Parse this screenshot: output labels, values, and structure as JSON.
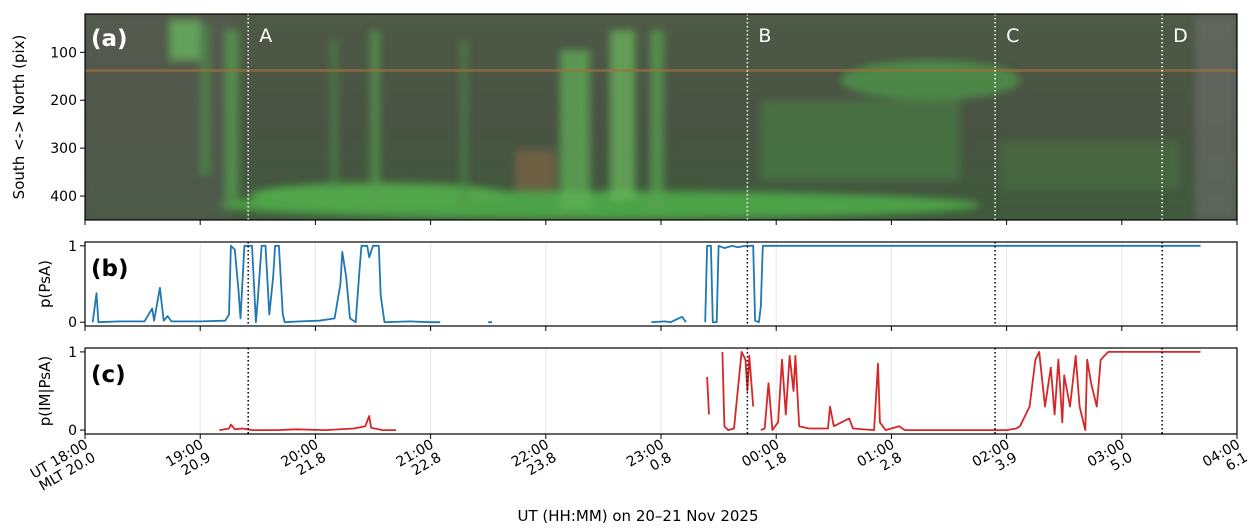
{
  "chart_data": [
    {
      "type": "image",
      "panel_label": "(a)",
      "ylabel": "South <-> North (pix)",
      "ylim": [
        450,
        20
      ],
      "yticks": [
        100,
        200,
        300,
        400
      ],
      "markers": [
        {
          "label": "A",
          "x": "19:25"
        },
        {
          "label": "B",
          "x": "23:45"
        },
        {
          "label": "C",
          "x": "01:54"
        },
        {
          "label": "D",
          "x": "03:21"
        }
      ]
    },
    {
      "type": "line",
      "panel_label": "(b)",
      "ylabel": "p(PsA)",
      "ylim": [
        -0.05,
        1.05
      ],
      "yticks": [
        0,
        1
      ],
      "color": "#1f77b4",
      "x": [
        "18:04",
        "18:06",
        "18:07",
        "18:18",
        "18:31",
        "18:35",
        "18:36",
        "18:39",
        "18:41",
        "18:43",
        "18:45",
        "19:00",
        "19:13",
        "19:15",
        "19:16",
        "19:18",
        "19:20",
        "19:21",
        "19:23",
        "19:27",
        "19:29",
        "19:30",
        "19:32",
        "19:34",
        "19:36",
        "19:38",
        "19:39",
        "19:41",
        "19:43",
        "19:44",
        "19:52",
        "20:02",
        "20:10",
        "20:13",
        "20:14",
        "20:16",
        "20:18",
        "20:21",
        "20:23",
        "20:24",
        "20:27",
        "20:28",
        "20:30",
        "20:33",
        "20:34",
        "20:36",
        "20:49",
        "21:00",
        "21:05",
        "21:15",
        "21:30",
        "21:32",
        "22:00",
        "22:55",
        "23:02",
        "23:05",
        "23:11",
        "23:13",
        "23:18",
        "23:23",
        "23:24",
        "23:26",
        "23:27",
        "23:29",
        "23:30",
        "23:33",
        "23:37",
        "23:40",
        "23:44",
        "23:48",
        "23:49",
        "23:51",
        "23:52",
        "23:53",
        "00:30",
        "01:30",
        "02:30",
        "03:41"
      ],
      "values": [
        0.0,
        0.38,
        0.0,
        0.01,
        0.01,
        0.18,
        0.02,
        0.45,
        0.02,
        0.08,
        0.01,
        0.01,
        0.02,
        0.1,
        1.0,
        0.95,
        0.4,
        0.05,
        1.0,
        1.0,
        0.0,
        0.3,
        1.0,
        1.0,
        0.1,
        0.6,
        1.0,
        1.0,
        0.1,
        0.0,
        0.01,
        0.02,
        0.05,
        0.5,
        0.92,
        0.6,
        0.05,
        0.0,
        0.7,
        1.0,
        1.0,
        0.85,
        1.0,
        1.0,
        0.35,
        0.0,
        0.01,
        0.0,
        0.0,
        null,
        0.0,
        0.0,
        null,
        0.0,
        0.01,
        0.0,
        0.07,
        0.0,
        null,
        0.0,
        1.0,
        1.0,
        0.0,
        0.0,
        1.0,
        0.97,
        1.0,
        0.98,
        1.0,
        1.0,
        0.02,
        0.0,
        0.2,
        1.0,
        1.0,
        1.0,
        1.0,
        1.0
      ]
    },
    {
      "type": "line",
      "panel_label": "(c)",
      "ylabel": "p(IM|PsA)",
      "ylim": [
        -0.05,
        1.05
      ],
      "yticks": [
        0,
        1
      ],
      "color": "#d62728",
      "x": [
        "19:10",
        "19:15",
        "19:16",
        "19:18",
        "19:22",
        "19:27",
        "19:40",
        "19:50",
        "20:05",
        "20:20",
        "20:26",
        "20:28",
        "20:29",
        "20:35",
        "20:42",
        "22:00",
        "23:24",
        "23:25",
        "23:28",
        "23:32",
        "23:33",
        "23:35",
        "23:38",
        "23:42",
        "23:44",
        "23:45",
        "23:46",
        "23:48",
        "23:50",
        "23:52",
        "23:54",
        "23:56",
        "23:58",
        "00:01",
        "00:03",
        "00:05",
        "00:07",
        "00:09",
        "00:10",
        "00:12",
        "00:17",
        "00:27",
        "00:28",
        "00:30",
        "00:38",
        "00:40",
        "00:51",
        "00:53",
        "00:54",
        "00:57",
        "01:04",
        "01:07",
        "01:30",
        "02:00",
        "02:05",
        "02:07",
        "02:12",
        "02:15",
        "02:17",
        "02:20",
        "02:23",
        "02:25",
        "02:27",
        "02:29",
        "02:30",
        "02:33",
        "02:36",
        "02:38",
        "02:41",
        "02:42",
        "02:44",
        "02:47",
        "02:49",
        "02:51",
        "02:53",
        "03:41"
      ],
      "values": [
        0.0,
        0.02,
        0.07,
        0.01,
        0.02,
        0.0,
        0.0,
        0.01,
        0.0,
        0.02,
        0.05,
        0.18,
        0.03,
        0.0,
        0.0,
        null,
        0.68,
        0.2,
        null,
        1.0,
        0.05,
        0.0,
        0.02,
        1.0,
        0.9,
        0.5,
        0.95,
        0.3,
        null,
        0.0,
        0.02,
        0.6,
        0.0,
        0.1,
        0.9,
        0.2,
        0.95,
        0.5,
        0.95,
        0.05,
        0.02,
        0.02,
        0.3,
        0.05,
        0.15,
        0.02,
        0.0,
        0.85,
        0.1,
        0.0,
        0.05,
        0.0,
        0.0,
        0.0,
        0.02,
        0.05,
        0.3,
        0.9,
        1.0,
        0.3,
        0.8,
        0.2,
        0.9,
        0.1,
        0.7,
        0.3,
        0.95,
        0.3,
        0.0,
        0.9,
        0.6,
        0.3,
        0.9,
        0.95,
        1.0,
        1.0
      ],
      "xlim": [
        "18:00",
        "04:00"
      ],
      "xticks": [
        "18:00",
        "19:00",
        "20:00",
        "21:00",
        "22:00",
        "23:00",
        "00:00",
        "01:00",
        "02:00",
        "03:00",
        "04:00"
      ],
      "x_prefix": "UT",
      "mlt_prefix": "MLT",
      "mlt_ticks": [
        "20.0",
        "20.9",
        "21.8",
        "22.8",
        "23.8",
        "0.8",
        "1.8",
        "2.8",
        "3.9",
        "5.0",
        "6.1"
      ],
      "xlabel": "UT (HH:MM) on 20–21 Nov 2025",
      "grid": true
    }
  ]
}
